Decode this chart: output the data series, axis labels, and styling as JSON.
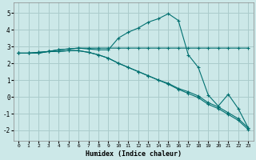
{
  "xlabel": "Humidex (Indice chaleur)",
  "bg_color": "#cce8e8",
  "grid_color": "#aacccc",
  "line_color": "#007070",
  "xlim": [
    -0.5,
    23.5
  ],
  "ylim": [
    -2.6,
    5.6
  ],
  "xticks": [
    0,
    1,
    2,
    3,
    4,
    5,
    6,
    7,
    8,
    9,
    10,
    11,
    12,
    13,
    14,
    15,
    16,
    17,
    18,
    19,
    20,
    21,
    22,
    23
  ],
  "yticks": [
    -2,
    -1,
    0,
    1,
    2,
    3,
    4,
    5
  ],
  "series_flat": [
    2.6,
    2.6,
    2.65,
    2.7,
    2.8,
    2.85,
    2.9,
    2.9,
    2.9,
    2.9,
    2.9,
    2.9,
    2.9,
    2.9,
    2.9,
    2.9,
    2.9,
    2.9,
    2.9,
    2.9,
    2.9,
    2.9,
    2.9,
    2.9
  ],
  "series_line1": [
    2.6,
    2.6,
    2.6,
    2.7,
    2.7,
    2.75,
    2.75,
    2.65,
    2.5,
    2.3,
    2.0,
    1.75,
    1.5,
    1.25,
    1.0,
    0.8,
    0.5,
    0.3,
    0.05,
    -0.35,
    -0.6,
    -0.95,
    -1.3,
    -1.85
  ],
  "series_line2": [
    2.6,
    2.6,
    2.6,
    2.7,
    2.7,
    2.75,
    2.75,
    2.65,
    2.5,
    2.3,
    2.0,
    1.75,
    1.5,
    1.25,
    1.0,
    0.75,
    0.45,
    0.2,
    -0.05,
    -0.45,
    -0.7,
    -1.05,
    -1.4,
    -1.95
  ],
  "curve_main": [
    2.6,
    2.6,
    2.65,
    2.7,
    2.8,
    2.85,
    2.9,
    2.85,
    2.8,
    2.8,
    3.5,
    3.85,
    4.1,
    4.45,
    4.65,
    4.95,
    4.55,
    2.5,
    1.75,
    0.1,
    -0.55,
    0.15,
    -0.7,
    -1.85
  ]
}
